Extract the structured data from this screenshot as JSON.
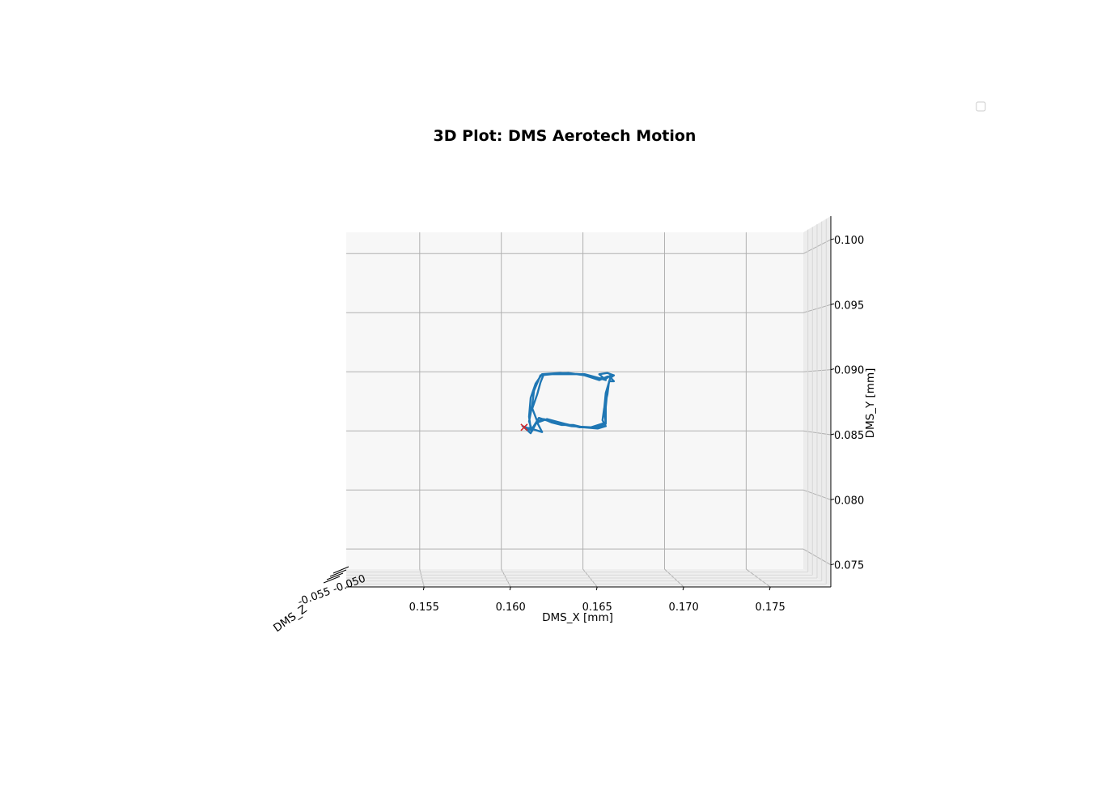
{
  "chart_data": {
    "type": "line",
    "projection": "3d",
    "title": "3D Plot: DMS Aerotech Motion",
    "xlabel": "DMS_X [mm]",
    "ylabel": "DMS_Y [mm]",
    "zlabel": "DMS_Z",
    "xlim": [
      0.1505,
      0.1785
    ],
    "ylim": [
      0.0733,
      0.1018
    ],
    "x_ticks": [
      "0.155",
      "0.160",
      "0.165",
      "0.170",
      "0.175"
    ],
    "y_ticks": [
      "0.075",
      "0.080",
      "0.085",
      "0.090",
      "0.095",
      "0.100"
    ],
    "z_ticks_overlapping": "-0.050 … -0.055",
    "grid": true,
    "legend": {
      "placement": "top-right",
      "entries": []
    },
    "colors": {
      "path": "#1f77b4",
      "start_marker": "#d62728",
      "pane": "#f7f7f7",
      "grid": "#b0b0b0"
    },
    "series": [
      {
        "color": "#1f77b4",
        "points": [
          [
            0.1614,
            0.0853
          ],
          [
            0.1618,
            0.0848
          ],
          [
            0.1622,
            0.0858
          ],
          [
            0.1619,
            0.0869
          ],
          [
            0.1622,
            0.0881
          ],
          [
            0.1624,
            0.0891
          ],
          [
            0.1626,
            0.0898
          ],
          [
            0.1633,
            0.0898
          ],
          [
            0.1642,
            0.0898
          ],
          [
            0.1651,
            0.0898
          ],
          [
            0.1659,
            0.0895
          ],
          [
            0.1664,
            0.0893
          ],
          [
            0.166,
            0.0898
          ],
          [
            0.1665,
            0.0899
          ],
          [
            0.1667,
            0.0898
          ],
          [
            0.1669,
            0.0897
          ],
          [
            0.1667,
            0.0895
          ],
          [
            0.1669,
            0.0892
          ],
          [
            0.1666,
            0.0892
          ],
          [
            0.1665,
            0.0881
          ],
          [
            0.1663,
            0.0869
          ],
          [
            0.1662,
            0.0859
          ],
          [
            0.1664,
            0.0854
          ],
          [
            0.1659,
            0.0852
          ],
          [
            0.165,
            0.0853
          ],
          [
            0.1644,
            0.0855
          ],
          [
            0.1637,
            0.0855
          ],
          [
            0.1631,
            0.0857
          ],
          [
            0.1626,
            0.086
          ],
          [
            0.1622,
            0.0858
          ],
          [
            0.1619,
            0.0851
          ],
          [
            0.1613,
            0.0854
          ],
          [
            0.1619,
            0.085
          ],
          [
            0.1617,
            0.0858
          ],
          [
            0.1619,
            0.0872
          ],
          [
            0.162,
            0.0884
          ],
          [
            0.1624,
            0.0897
          ],
          [
            0.1631,
            0.0898
          ],
          [
            0.1641,
            0.0899
          ],
          [
            0.1651,
            0.0897
          ],
          [
            0.166,
            0.0893
          ],
          [
            0.1665,
            0.0896
          ],
          [
            0.1667,
            0.0896
          ],
          [
            0.1664,
            0.0882
          ],
          [
            0.1663,
            0.0868
          ],
          [
            0.1664,
            0.0856
          ],
          [
            0.1659,
            0.0853
          ],
          [
            0.1648,
            0.0853
          ],
          [
            0.1639,
            0.0856
          ],
          [
            0.1628,
            0.086
          ],
          [
            0.1622,
            0.0857
          ],
          [
            0.1625,
            0.0849
          ],
          [
            0.1618,
            0.0852
          ],
          [
            0.1617,
            0.0862
          ],
          [
            0.1618,
            0.0878
          ],
          [
            0.1621,
            0.089
          ],
          [
            0.1625,
            0.0898
          ],
          [
            0.1636,
            0.0899
          ],
          [
            0.1648,
            0.0898
          ],
          [
            0.1657,
            0.0895
          ],
          [
            0.1664,
            0.0894
          ],
          [
            0.1667,
            0.0897
          ],
          [
            0.1665,
            0.0885
          ],
          [
            0.1664,
            0.087
          ],
          [
            0.1664,
            0.0857
          ],
          [
            0.1655,
            0.0853
          ],
          [
            0.1643,
            0.0854
          ],
          [
            0.1632,
            0.0857
          ],
          [
            0.1623,
            0.0861
          ],
          [
            0.1619,
            0.0852
          ],
          [
            0.1614,
            0.0853
          ]
        ]
      }
    ],
    "start_marker": {
      "symbol": "x",
      "x": 0.1614,
      "y": 0.0853
    }
  }
}
